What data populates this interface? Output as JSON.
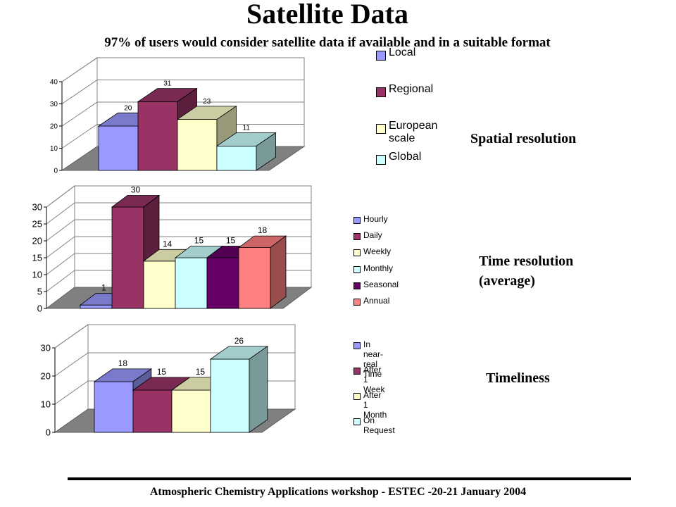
{
  "title": "Satellite Data",
  "subtitle": "97% of users would consider satellite data if available and in a suitable format",
  "footer": "Atmospheric Chemistry Applications workshop - ESTEC -20-21 January 2004",
  "colors": {
    "blue": "#9999ff",
    "maroon": "#993366",
    "cream": "#ffffcc",
    "cyan": "#ccffff",
    "purple": "#660066",
    "salmon": "#ff8080",
    "wall": "#ffffff",
    "floor": "#808080"
  },
  "chart_data": [
    {
      "type": "bar",
      "side_label": "Spatial resolution",
      "categories": [
        "Local",
        "Regional",
        "European scale",
        "Global"
      ],
      "values": [
        20,
        31,
        23,
        11
      ],
      "colors": [
        "#9999ff",
        "#993366",
        "#ffffcc",
        "#ccffff"
      ],
      "ylim": [
        0,
        40
      ],
      "yticks": [
        "0",
        "10",
        "20",
        "30",
        "40"
      ],
      "grid": true,
      "legend": "right"
    },
    {
      "type": "bar",
      "side_label": "Time resolution\n(average)",
      "categories": [
        "Hourly",
        "Daily",
        "Weekly",
        "Monthly",
        "Seasonal",
        "Annual"
      ],
      "values": [
        1,
        30,
        14,
        15,
        15,
        18
      ],
      "colors": [
        "#9999ff",
        "#993366",
        "#ffffcc",
        "#ccffff",
        "#660066",
        "#ff8080"
      ],
      "ylim": [
        0,
        30
      ],
      "yticks": [
        "0",
        "5",
        "10",
        "15",
        "20",
        "25",
        "30"
      ],
      "grid": true,
      "legend": "right"
    },
    {
      "type": "bar",
      "side_label": "Timeliness",
      "categories": [
        "In near-real Time",
        "After 1 Week",
        "After 1 Month",
        "On Request"
      ],
      "values": [
        18,
        15,
        15,
        26
      ],
      "colors": [
        "#9999ff",
        "#993366",
        "#ffffcc",
        "#ccffff"
      ],
      "ylim": [
        0,
        30
      ],
      "yticks": [
        "0",
        "10",
        "20",
        "30"
      ],
      "grid": true,
      "legend": "right"
    }
  ]
}
